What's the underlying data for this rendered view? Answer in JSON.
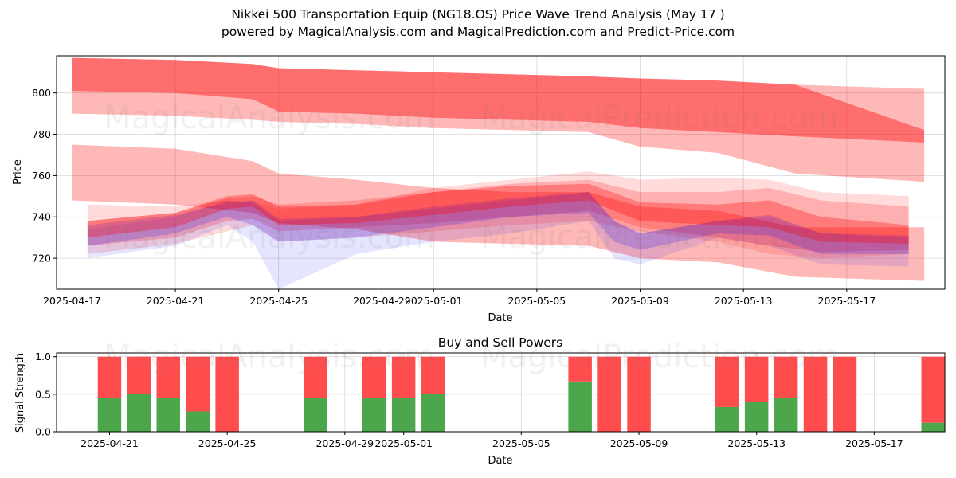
{
  "title_line1": "Nikkei 500 Transportation Equip (NG18.OS) Price Wave Trend Analysis (May 17 )",
  "title_line2": "powered by MagicalAnalysis.com and MagicalPrediction.com and Predict-Price.com",
  "watermarks": [
    "MagicalAnalysis.com",
    "MagicalPrediction.com"
  ],
  "colors": {
    "red_band": "#ff0000",
    "blue_band": "#0000ff",
    "buy": "#4ca64c",
    "sell": "#ff4d4d"
  },
  "chart_data": [
    {
      "type": "area",
      "title": "Nikkei 500 Transportation Equip (NG18.OS) Price Wave Trend Analysis (May 17 )",
      "xlabel": "Date",
      "ylabel": "Price",
      "ylim": [
        705,
        818
      ],
      "xlim_days": [
        -0.6,
        33.8
      ],
      "x_start": "2025-04-17",
      "x_ticks": [
        {
          "day": 0,
          "label": "2025-04-17"
        },
        {
          "day": 4,
          "label": "2025-04-21"
        },
        {
          "day": 8,
          "label": "2025-04-25"
        },
        {
          "day": 12,
          "label": "2025-04-29"
        },
        {
          "day": 14,
          "label": "2025-05-01"
        },
        {
          "day": 18,
          "label": "2025-05-05"
        },
        {
          "day": 22,
          "label": "2025-05-09"
        },
        {
          "day": 26,
          "label": "2025-05-13"
        },
        {
          "day": 30,
          "label": "2025-05-17"
        }
      ],
      "y_ticks": [
        720,
        740,
        760,
        780,
        800
      ],
      "grid": true,
      "bands": [
        {
          "color": "red",
          "opacity": 0.28,
          "x": [
            0,
            4,
            7,
            8,
            11,
            14,
            17,
            20,
            22,
            25,
            28,
            33
          ],
          "upper": [
            817,
            816,
            814,
            812,
            811,
            810,
            809,
            808,
            807,
            806,
            804,
            802
          ],
          "lower": [
            790,
            789,
            787,
            786,
            785,
            783,
            782,
            781,
            774,
            771,
            761,
            757
          ]
        },
        {
          "color": "red",
          "opacity": 0.4,
          "x": [
            0,
            4,
            7,
            8,
            11,
            14,
            17,
            20,
            22,
            25,
            28,
            33
          ],
          "upper": [
            817,
            816,
            814,
            812,
            811,
            810,
            809,
            808,
            807,
            806,
            804,
            782
          ],
          "lower": [
            801,
            800,
            797,
            791,
            790,
            788,
            787,
            786,
            783,
            781,
            779,
            776
          ]
        },
        {
          "color": "red",
          "opacity": 0.28,
          "x": [
            0,
            4,
            7,
            8,
            11,
            14,
            17,
            20,
            22,
            25,
            28,
            33
          ],
          "upper": [
            775,
            773,
            767,
            761,
            758,
            754,
            752,
            752,
            745,
            743,
            735,
            735
          ],
          "lower": [
            748,
            746,
            742,
            737,
            734,
            728,
            727,
            726,
            720,
            718,
            711,
            709
          ]
        },
        {
          "color": "red",
          "opacity": 0.14,
          "x": [
            0.6,
            4,
            6,
            7,
            8,
            11,
            14,
            17,
            20,
            22,
            25,
            27,
            29,
            32.4
          ],
          "upper": [
            746,
            745,
            748,
            747,
            744,
            746,
            754,
            758,
            762,
            758,
            759,
            758,
            752,
            750
          ],
          "lower": [
            722,
            727,
            733,
            736,
            728,
            730,
            733,
            736,
            738,
            733,
            728,
            722,
            720,
            722
          ]
        },
        {
          "color": "red",
          "opacity": 0.2,
          "x": [
            0.6,
            4,
            6,
            7,
            8,
            11,
            14,
            17,
            20,
            22,
            25,
            27,
            29,
            32.4
          ],
          "upper": [
            738,
            742,
            749,
            750,
            746,
            748,
            752,
            756,
            758,
            752,
            752,
            754,
            748,
            745
          ],
          "lower": [
            726,
            730,
            738,
            739,
            733,
            735,
            737,
            740,
            743,
            735,
            730,
            726,
            723,
            724
          ]
        },
        {
          "color": "blue",
          "opacity": 0.1,
          "x": [
            0.6,
            4,
            6,
            7,
            8,
            11,
            14,
            17,
            20,
            21,
            22,
            25,
            27,
            29,
            32.4
          ],
          "upper": [
            734,
            740,
            748,
            747,
            738,
            740,
            744,
            748,
            752,
            738,
            732,
            738,
            740,
            732,
            730
          ],
          "lower": [
            720,
            726,
            736,
            728,
            705,
            722,
            728,
            732,
            738,
            720,
            717,
            730,
            726,
            717,
            716
          ]
        },
        {
          "color": "blue",
          "opacity": 0.18,
          "x": [
            0.6,
            4,
            6,
            7,
            8,
            11,
            14,
            17,
            20,
            21,
            22,
            25,
            27,
            29,
            32.4
          ],
          "upper": [
            736,
            741,
            747,
            748,
            739,
            740,
            745,
            749,
            752,
            738,
            732,
            738,
            741,
            732,
            731
          ],
          "lower": [
            726,
            732,
            740,
            736,
            728,
            730,
            735,
            740,
            742,
            728,
            724,
            732,
            731,
            722,
            722
          ]
        },
        {
          "color": "red",
          "opacity": 0.3,
          "x": [
            0.6,
            4,
            6,
            7,
            8,
            11,
            14,
            17,
            20,
            22,
            25,
            27,
            29,
            32.4
          ],
          "upper": [
            738,
            742,
            750,
            751,
            745,
            746,
            752,
            755,
            756,
            747,
            746,
            748,
            740,
            736
          ],
          "lower": [
            730,
            735,
            744,
            745,
            736,
            737,
            741,
            745,
            748,
            738,
            736,
            735,
            728,
            727
          ]
        }
      ]
    },
    {
      "type": "bar",
      "title": "Buy and Sell Powers",
      "xlabel": "Date",
      "ylabel": "Signal Strength",
      "ylim": [
        0,
        1.05
      ],
      "xlim_days": [
        -0.8,
        29.4
      ],
      "x_start": "2025-04-20",
      "x_ticks": [
        {
          "day": 1,
          "label": "2025-04-21"
        },
        {
          "day": 5,
          "label": "2025-04-25"
        },
        {
          "day": 9,
          "label": "2025-04-29"
        },
        {
          "day": 11,
          "label": "2025-05-01"
        },
        {
          "day": 15,
          "label": "2025-05-05"
        },
        {
          "day": 19,
          "label": "2025-05-09"
        },
        {
          "day": 23,
          "label": "2025-05-13"
        },
        {
          "day": 27,
          "label": "2025-05-17"
        }
      ],
      "y_ticks": [
        "0.0",
        "0.5",
        "1.0"
      ],
      "series": [
        {
          "name": "Buy",
          "color": "#4ca64c",
          "days": [
            1,
            2,
            3,
            4,
            5,
            8,
            10,
            11,
            12,
            17,
            18,
            19,
            22,
            23,
            24,
            25,
            26,
            29
          ],
          "values": [
            0.45,
            0.5,
            0.45,
            0.27,
            0.0,
            0.45,
            0.45,
            0.45,
            0.5,
            0.67,
            0.0,
            0.0,
            0.33,
            0.4,
            0.45,
            0.0,
            0.0,
            0.12
          ]
        },
        {
          "name": "Sell",
          "color": "#ff4d4d",
          "days": [
            1,
            2,
            3,
            4,
            5,
            8,
            10,
            11,
            12,
            17,
            18,
            19,
            22,
            23,
            24,
            25,
            26,
            29
          ],
          "values": [
            0.55,
            0.5,
            0.55,
            0.73,
            1.0,
            0.55,
            0.55,
            0.55,
            0.5,
            0.33,
            1.0,
            1.0,
            0.67,
            0.6,
            0.55,
            1.0,
            1.0,
            0.88
          ]
        }
      ]
    }
  ]
}
